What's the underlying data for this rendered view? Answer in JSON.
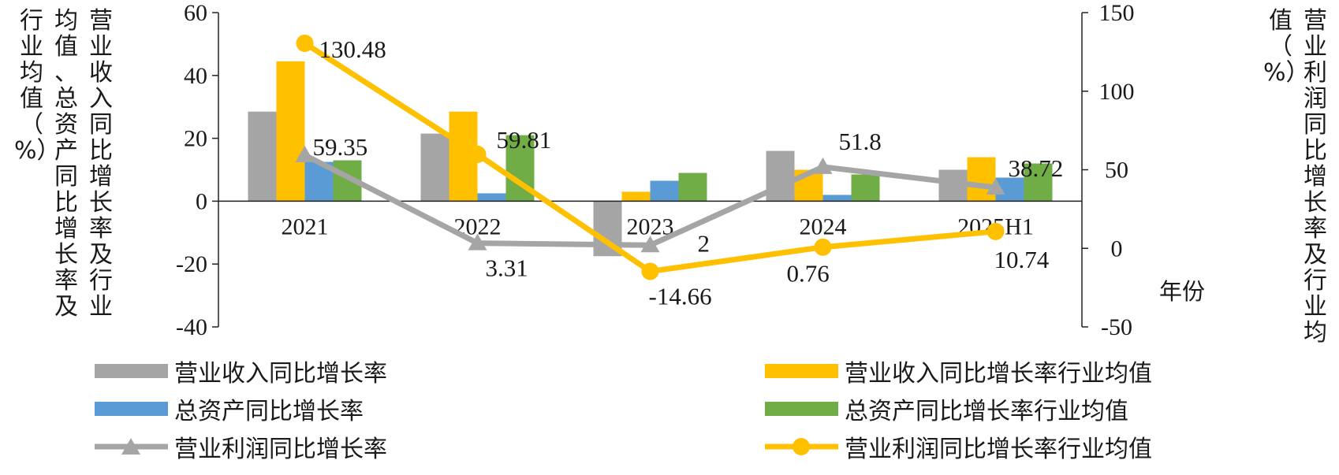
{
  "chart_data": {
    "type": "bar",
    "categories": [
      "2021",
      "2022",
      "2023",
      "2024",
      "2025H1"
    ],
    "xlabel": "年份",
    "ylabel_left": "营业收入同比增长率及行业均值、总资产同比增长率及行业均值（%）",
    "ylabel_right": "营业利润同比增长率及行业均值（%）",
    "ylim_left": [
      -40,
      60
    ],
    "yticks_left": [
      "60",
      "40",
      "20",
      "0",
      "-20",
      "-40"
    ],
    "ylim_right": [
      -50,
      150
    ],
    "yticks_right": [
      "150",
      "100",
      "50",
      "0",
      "-50"
    ],
    "grid": false,
    "legend_position": "bottom",
    "series": [
      {
        "name": "营业收入同比增长率",
        "type": "bar",
        "axis": "left",
        "color": "#A5A5A5",
        "values": [
          28.5,
          21.5,
          -17.5,
          16,
          10
        ]
      },
      {
        "name": "营业收入同比增长率行业均值",
        "type": "bar",
        "axis": "left",
        "color": "#FFC000",
        "values": [
          44.5,
          28.5,
          3,
          10,
          14
        ]
      },
      {
        "name": "总资产同比增长率",
        "type": "bar",
        "axis": "left",
        "color": "#5B9BD5",
        "values": [
          12.5,
          2.5,
          6.5,
          2,
          7.5
        ]
      },
      {
        "name": "总资产同比增长率行业均值",
        "type": "bar",
        "axis": "left",
        "color": "#70AD47",
        "values": [
          13,
          21,
          9,
          8.5,
          12
        ]
      },
      {
        "name": "营业利润同比增长率",
        "type": "line",
        "marker": "triangle",
        "axis": "right",
        "color": "#A5A5A5",
        "values": [
          59.35,
          3.31,
          2,
          51.8,
          38.72
        ],
        "labels": [
          "59.35",
          "3.31",
          "2",
          "51.8",
          "38.72"
        ]
      },
      {
        "name": "营业利润同比增长率行业均值",
        "type": "line",
        "marker": "circle",
        "axis": "right",
        "color": "#FFC000",
        "values": [
          130.48,
          59.81,
          -14.66,
          0.76,
          10.74
        ],
        "labels": [
          "130.48",
          "59.81",
          "-14.66",
          "0.76",
          "10.74"
        ]
      }
    ]
  }
}
